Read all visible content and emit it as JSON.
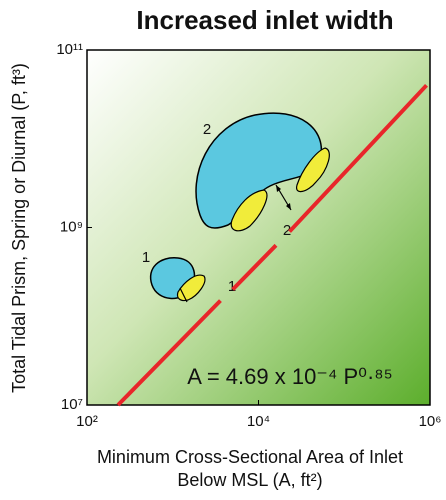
{
  "chart_data": {
    "type": "line",
    "title": "Increased inlet width",
    "x_label": [
      "Minimum Cross-Sectional Area of Inlet",
      "Below MSL (A, ft²)"
    ],
    "y_label": "Total Tidal Prism, Spring or Diurnal (P, ft³)",
    "x_scale": "log",
    "y_scale": "log",
    "xlim": [
      100,
      1000000
    ],
    "ylim": [
      10000000,
      100000000000
    ],
    "xticks": [
      {
        "value": 100,
        "label": "10²"
      },
      {
        "value": 10000,
        "label": "10⁴"
      },
      {
        "value": 1000000,
        "label": "10⁶"
      }
    ],
    "yticks": [
      {
        "value": 10000000,
        "label": "10⁷"
      },
      {
        "value": 1000000000,
        "label": "10⁹"
      },
      {
        "value": 100000000000,
        "label": "10¹¹"
      }
    ],
    "x": [
      230,
      3600,
      4200,
      5000,
      16000,
      19000,
      23000,
      910000
    ],
    "series": [
      {
        "color": "#e8262a",
        "values": [
          10000000,
          150000000,
          null,
          200000000,
          630000000,
          null,
          900000000,
          40000000000
        ]
      }
    ],
    "annotations": [
      "A = 4.69 x 10⁻⁴ P⁰·⁸⁵",
      "1",
      "2",
      "1",
      "2"
    ]
  }
}
